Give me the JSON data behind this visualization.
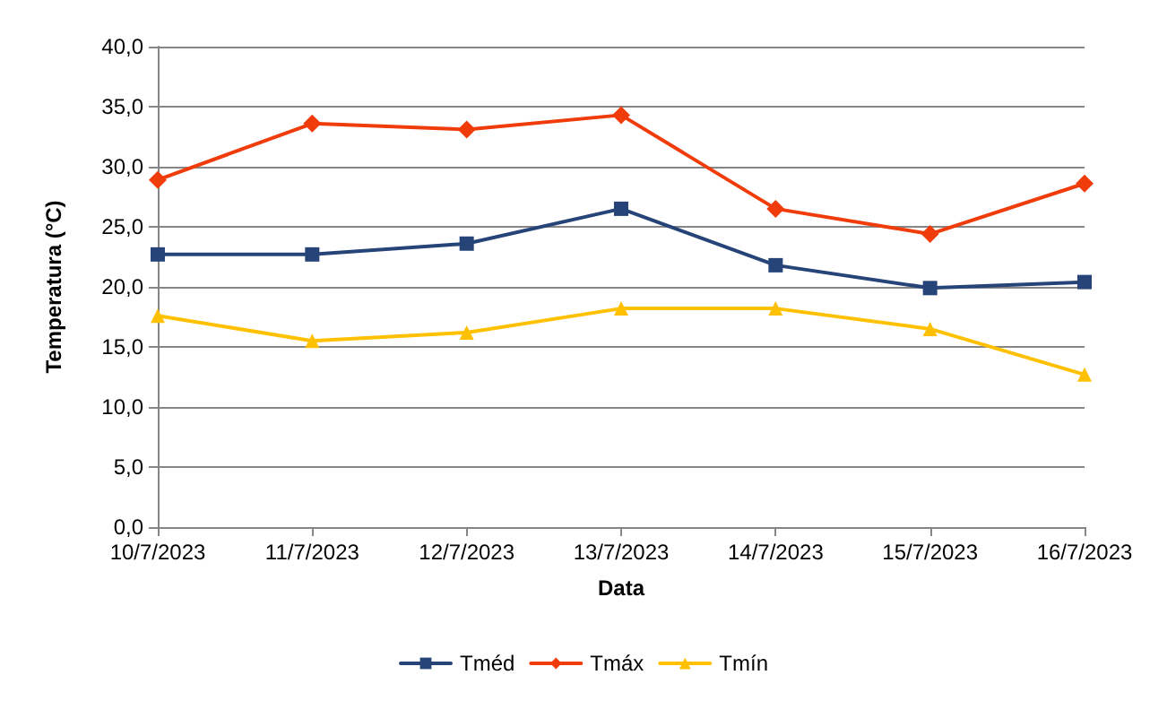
{
  "chart_data": {
    "type": "line",
    "xlabel": "Data",
    "ylabel": "Temperatura (°C)",
    "categories": [
      "10/7/2023",
      "11/7/2023",
      "12/7/2023",
      "13/7/2023",
      "14/7/2023",
      "15/7/2023",
      "16/7/2023"
    ],
    "series": [
      {
        "name": "Tméd",
        "color": "#264478",
        "marker": "square",
        "values": [
          22.7,
          22.7,
          23.6,
          26.5,
          21.8,
          19.9,
          20.4
        ]
      },
      {
        "name": "Tmáx",
        "color": "#f03c0a",
        "marker": "diamond",
        "values": [
          28.9,
          33.6,
          33.1,
          34.3,
          26.5,
          24.4,
          28.6
        ]
      },
      {
        "name": "Tmín",
        "color": "#ffc000",
        "marker": "triangle",
        "values": [
          17.6,
          15.5,
          16.2,
          18.2,
          18.2,
          16.5,
          12.7
        ]
      }
    ],
    "ylim": [
      0,
      40
    ],
    "yticks": [
      {
        "value": 0,
        "label": "0,0"
      },
      {
        "value": 5,
        "label": "5,0"
      },
      {
        "value": 10,
        "label": "10,0"
      },
      {
        "value": 15,
        "label": "15,0"
      },
      {
        "value": 20,
        "label": "20,0"
      },
      {
        "value": 25,
        "label": "25,0"
      },
      {
        "value": 30,
        "label": "30,0"
      },
      {
        "value": 35,
        "label": "35,0"
      },
      {
        "value": 40,
        "label": "40,0"
      }
    ],
    "grid": "y",
    "legend": "bottom",
    "line_style": "solid"
  }
}
